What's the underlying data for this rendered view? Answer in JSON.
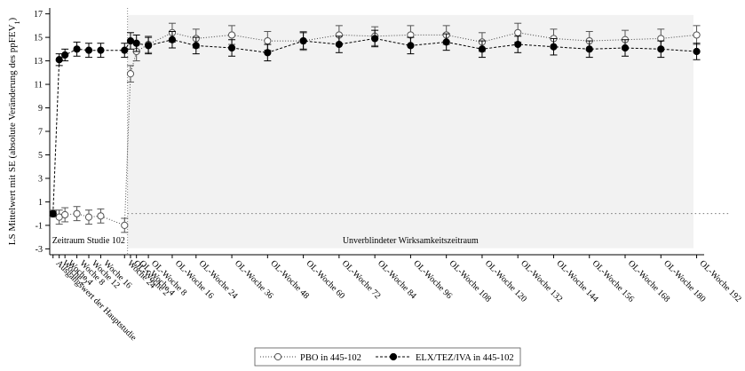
{
  "chart_data": {
    "type": "line",
    "ylabel": "LS Mittelwert mit SE (absolute Veränderung des ppFEV",
    "ylabel_subscript": "1",
    "ylabel_end": ")",
    "ylim": [
      -3.5,
      17.5
    ],
    "yticks": [
      -3,
      -1,
      1,
      3,
      5,
      7,
      9,
      11,
      13,
      15,
      17
    ],
    "reference_line_y": 0,
    "categories": [
      "Ausgangswert der Hauptstudie",
      "Woche 2",
      "Woche 4",
      "Woche 8",
      "Woche 12",
      "Woche 16",
      "Woche 24",
      "OL-Woche 2",
      "OL-Woche 4",
      "OL-Woche 8",
      "OL-Woche 16",
      "OL-Woche 24",
      "OL-Woche 36",
      "OL-Woche 48",
      "OL-Woche 60",
      "OL-Woche 72",
      "OL-Woche 84",
      "OL-Woche 96",
      "OL-Woche 108",
      "OL-Woche 120",
      "OL-Woche 132",
      "OL-Woche 144",
      "OL-Woche 156",
      "OL-Woche 168",
      "OL-Woche 180",
      "OL-Woche 192"
    ],
    "x": [
      0,
      0.28,
      0.54,
      1.08,
      1.62,
      2.16,
      3.24,
      3.51,
      3.78,
      4.32,
      5.4,
      6.48,
      8.1,
      9.72,
      11.34,
      12.96,
      14.58,
      16.2,
      17.82,
      19.44,
      21.06,
      22.68,
      24.3,
      25.92,
      27.54,
      29.16
    ],
    "regions": [
      {
        "label": "Zeitraum Studie 102",
        "shaded": false
      },
      {
        "label": "Unverblindeter Wirksamkeitszeitraum",
        "shaded": true
      }
    ],
    "series": [
      {
        "name": "PBO in 445-102",
        "line_style": "dotted",
        "marker": "open-circle",
        "values": [
          0.0,
          -0.3,
          -0.1,
          0.0,
          -0.3,
          -0.2,
          -1.0,
          11.9,
          13.8,
          14.4,
          15.4,
          14.9,
          15.2,
          14.7,
          14.7,
          15.2,
          15.1,
          15.2,
          15.2,
          14.6,
          15.4,
          14.9,
          14.7,
          14.8,
          14.9,
          15.2
        ],
        "se": [
          0.3,
          0.6,
          0.6,
          0.6,
          0.6,
          0.6,
          0.6,
          0.7,
          0.8,
          0.7,
          0.8,
          0.8,
          0.8,
          0.8,
          0.8,
          0.8,
          0.8,
          0.8,
          0.8,
          0.8,
          0.8,
          0.8,
          0.8,
          0.8,
          0.8,
          0.8
        ]
      },
      {
        "name": "ELX/TEZ/IVA in 445-102",
        "line_style": "dashed",
        "marker": "filled-circle",
        "values": [
          0.0,
          13.1,
          13.5,
          14.0,
          13.9,
          13.9,
          13.9,
          14.7,
          14.5,
          14.3,
          14.8,
          14.3,
          14.1,
          13.7,
          14.7,
          14.4,
          14.9,
          14.3,
          14.6,
          14.0,
          14.4,
          14.2,
          14.0,
          14.1,
          14.0,
          13.8
        ],
        "se": [
          0.2,
          0.5,
          0.5,
          0.6,
          0.6,
          0.6,
          0.6,
          0.7,
          0.7,
          0.7,
          0.7,
          0.7,
          0.7,
          0.7,
          0.7,
          0.7,
          0.7,
          0.7,
          0.7,
          0.7,
          0.7,
          0.7,
          0.7,
          0.7,
          0.7,
          0.7
        ]
      }
    ],
    "legend_position": "bottom-center",
    "grid": false
  }
}
